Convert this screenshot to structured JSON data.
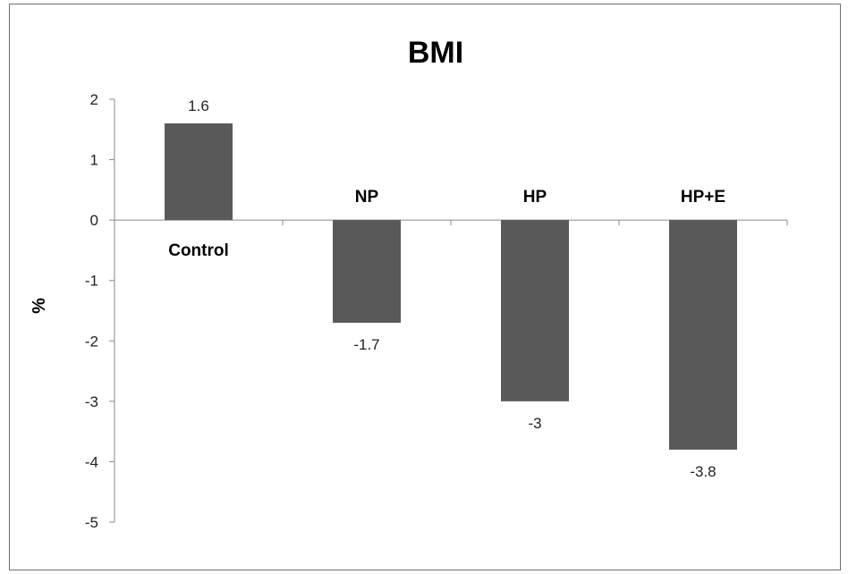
{
  "chart_data": {
    "type": "bar",
    "title": "BMI",
    "xlabel": "",
    "ylabel": "%",
    "categories": [
      "Control",
      "NP",
      "HP",
      "HP+E"
    ],
    "values": [
      1.6,
      -1.7,
      -3,
      -3.8
    ],
    "data_labels": [
      "1.6",
      "-1.7",
      "-3",
      "-3.8"
    ],
    "ylim": [
      -5,
      2
    ],
    "yticks": [
      2,
      1,
      0,
      -1,
      -2,
      -3,
      -4,
      -5
    ],
    "grid": false,
    "legend": "none",
    "bar_color": "#595959"
  }
}
